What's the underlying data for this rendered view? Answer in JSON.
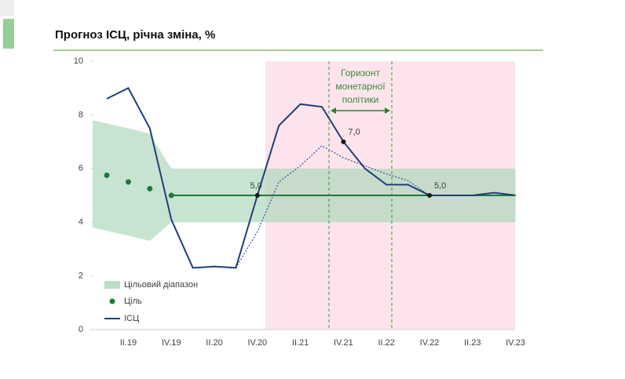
{
  "chart_data": {
    "type": "line",
    "title": "Прогноз ІСЦ, річна зміна, %",
    "categories": [
      null,
      "II.19",
      null,
      "IV.19",
      null,
      "II.20",
      null,
      "IV.20",
      null,
      "II.21",
      null,
      "IV.21",
      null,
      "II.22",
      null,
      "IV.22",
      null,
      "II.23",
      null,
      "IV.23"
    ],
    "ylim": [
      0,
      10
    ],
    "yticks": [
      0,
      2,
      4,
      6,
      8,
      10
    ],
    "band": {
      "name": "Цільовий діапазон",
      "color": "#a9d5b9",
      "lower": [
        3.8,
        3.5,
        3.3,
        4,
        4,
        4,
        4,
        4,
        4,
        4,
        4,
        4,
        4,
        4,
        4,
        4,
        4,
        4,
        4,
        4
      ],
      "upper": [
        7.8,
        7.5,
        7.3,
        6,
        6,
        6,
        6,
        6,
        6,
        6,
        6,
        6,
        6,
        6,
        6,
        6,
        6,
        6,
        6,
        6
      ]
    },
    "series": [
      {
        "name": "Ціль",
        "color": "#1d7a3a",
        "values": [
          5.75,
          5.5,
          5.25,
          5,
          5,
          5,
          5,
          5,
          5,
          5,
          5,
          5,
          5,
          5,
          5,
          5,
          5,
          5,
          5,
          5
        ]
      },
      {
        "name": "ІСЦ",
        "color": "#1f3f7a",
        "values": [
          8.6,
          9.0,
          7.5,
          4.1,
          2.3,
          2.35,
          2.3,
          5.0,
          7.6,
          8.4,
          8.3,
          7.0,
          6.0,
          5.4,
          5.4,
          5.0,
          5.0,
          5.0,
          5.1,
          5.0
        ],
        "value_labels": [
          null,
          null,
          null,
          null,
          null,
          null,
          null,
          "5,0",
          null,
          null,
          null,
          "7,0",
          null,
          null,
          null,
          "5,0",
          null,
          null,
          null,
          null
        ]
      },
      {
        "color": "#3d5fa8",
        "dotted": true,
        "values": [
          null,
          null,
          null,
          null,
          null,
          null,
          2.3,
          3.65,
          5.5,
          6.1,
          6.85,
          6.4,
          6.1,
          5.8,
          5.55,
          5.0,
          null,
          null,
          null,
          null
        ]
      }
    ],
    "annotation": [
      "Горизонт",
      "монетарної",
      "політики"
    ]
  }
}
